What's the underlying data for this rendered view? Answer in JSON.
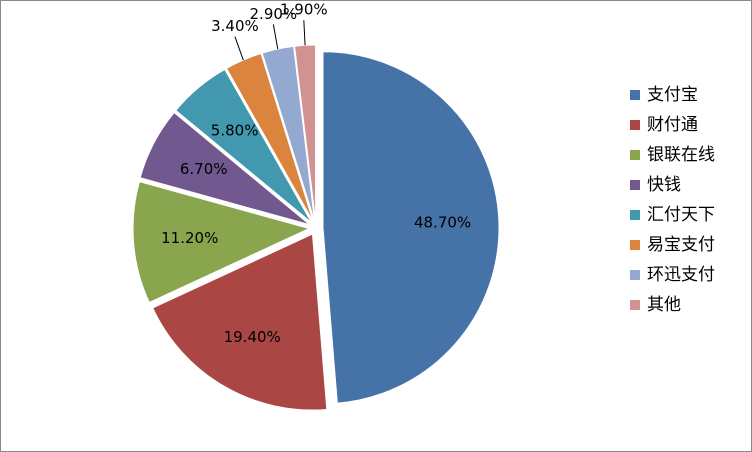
{
  "chart_data": {
    "type": "pie",
    "categories": [
      "支付宝",
      "财付通",
      "银联在线",
      "快钱",
      "汇付天下",
      "易宝支付",
      "环迅支付",
      "其他"
    ],
    "values": [
      48.7,
      19.4,
      11.2,
      6.7,
      5.8,
      3.4,
      2.9,
      1.9
    ],
    "value_labels": [
      "48.70%",
      "19.40%",
      "11.20%",
      "6.70%",
      "5.80%",
      "3.40%",
      "2.90%",
      "1.90%"
    ],
    "colors": [
      "#4572a7",
      "#aa4643",
      "#89a54e",
      "#71588f",
      "#4198af",
      "#db843d",
      "#93a9cf",
      "#d19392"
    ],
    "legend": "right"
  }
}
